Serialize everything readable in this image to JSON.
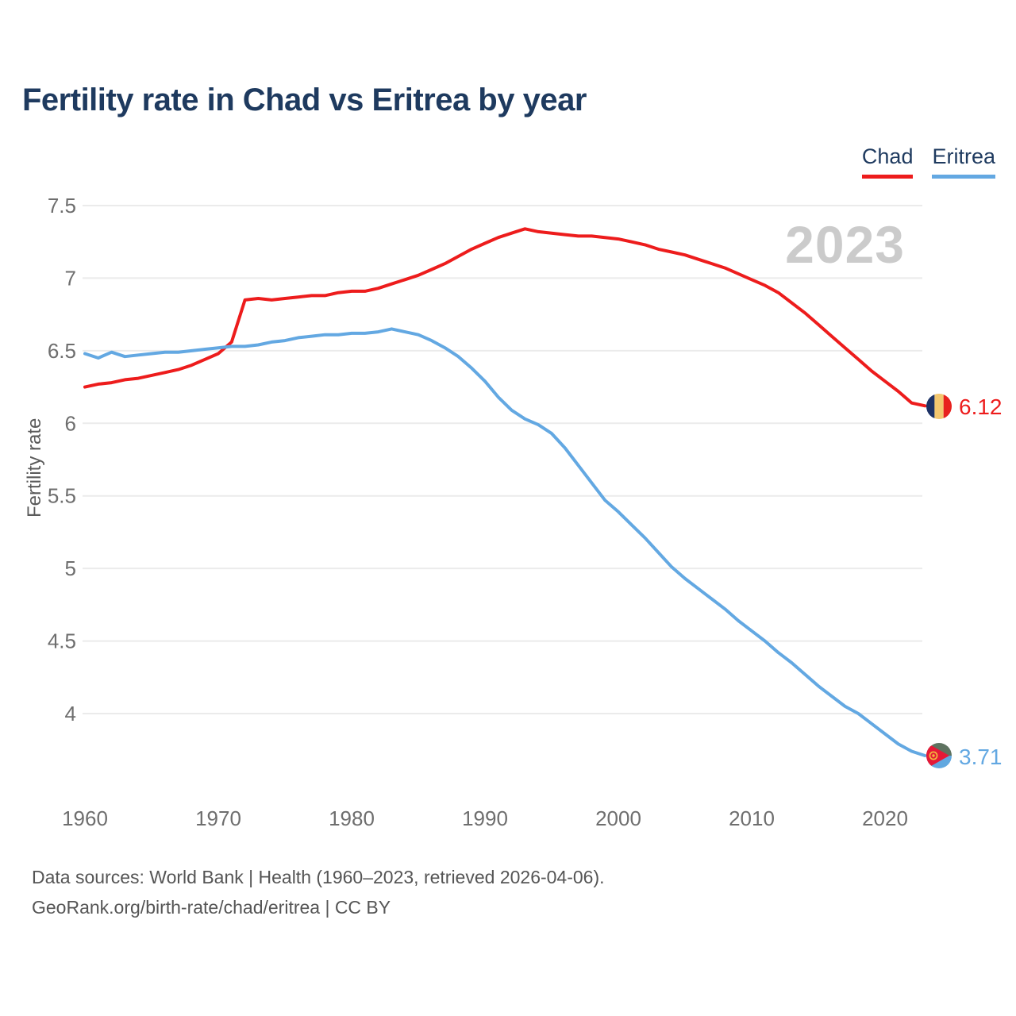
{
  "title": "Fertility rate in Chad vs Eritrea by year",
  "watermark": "2023",
  "ylabel": "Fertility rate",
  "legend": [
    {
      "label": "Chad",
      "color": "#ed1c1c"
    },
    {
      "label": "Eritrea",
      "color": "#63a8e2"
    }
  ],
  "footer": {
    "line1": "Data sources: World Bank | Health (1960–2023, retrieved 2026-04-06).",
    "line2": "GeoRank.org/birth-rate/chad/eritrea | CC BY"
  },
  "chart_data": {
    "type": "line",
    "title": "Fertility rate in Chad vs Eritrea by year",
    "xlabel": "",
    "ylabel": "Fertility rate",
    "x_start": 1960,
    "x_end": 2023,
    "x_ticks": [
      1960,
      1970,
      1980,
      1990,
      2000,
      2010,
      2020
    ],
    "y_ticks": [
      4,
      4.5,
      5,
      5.5,
      6,
      6.5,
      7,
      7.5
    ],
    "ylim": [
      3.6,
      7.6
    ],
    "grid": true,
    "legend_position": "top-right",
    "series": [
      {
        "name": "Chad",
        "color": "#ed1c1c",
        "end_label": "6.12",
        "values": [
          6.25,
          6.27,
          6.28,
          6.3,
          6.31,
          6.33,
          6.35,
          6.37,
          6.4,
          6.44,
          6.48,
          6.56,
          6.85,
          6.86,
          6.85,
          6.86,
          6.87,
          6.88,
          6.88,
          6.9,
          6.91,
          6.91,
          6.93,
          6.96,
          6.99,
          7.02,
          7.06,
          7.1,
          7.15,
          7.2,
          7.24,
          7.28,
          7.31,
          7.34,
          7.32,
          7.31,
          7.3,
          7.29,
          7.29,
          7.28,
          7.27,
          7.25,
          7.23,
          7.2,
          7.18,
          7.16,
          7.13,
          7.1,
          7.07,
          7.03,
          6.99,
          6.95,
          6.9,
          6.83,
          6.76,
          6.68,
          6.6,
          6.52,
          6.44,
          6.36,
          6.29,
          6.22,
          6.14,
          6.12
        ]
      },
      {
        "name": "Eritrea",
        "color": "#63a8e2",
        "end_label": "3.71",
        "values": [
          6.48,
          6.45,
          6.49,
          6.46,
          6.47,
          6.48,
          6.49,
          6.49,
          6.5,
          6.51,
          6.52,
          6.53,
          6.53,
          6.54,
          6.56,
          6.57,
          6.59,
          6.6,
          6.61,
          6.61,
          6.62,
          6.62,
          6.63,
          6.65,
          6.63,
          6.61,
          6.57,
          6.52,
          6.46,
          6.38,
          6.29,
          6.18,
          6.09,
          6.03,
          5.99,
          5.93,
          5.83,
          5.71,
          5.59,
          5.47,
          5.39,
          5.3,
          5.21,
          5.11,
          5.01,
          4.93,
          4.86,
          4.79,
          4.72,
          4.64,
          4.57,
          4.5,
          4.42,
          4.35,
          4.27,
          4.19,
          4.12,
          4.05,
          4.0,
          3.93,
          3.86,
          3.79,
          3.74,
          3.71
        ]
      }
    ]
  }
}
